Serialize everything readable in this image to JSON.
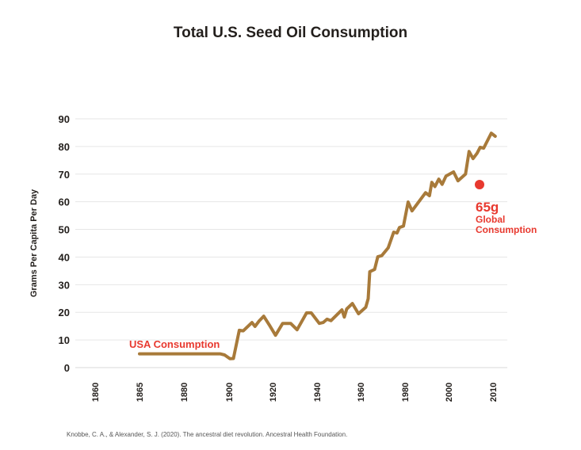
{
  "chart_data": {
    "type": "line",
    "title": "Total U.S. Seed Oil Consumption",
    "xlabel": "",
    "ylabel": "Grams Per Capita Per Day",
    "ylim": [
      0,
      90
    ],
    "yticks": [
      0,
      10,
      20,
      30,
      40,
      50,
      60,
      70,
      80,
      90
    ],
    "xticks": [
      1860,
      1865,
      1880,
      1900,
      1920,
      1940,
      1960,
      1980,
      2000,
      2010
    ],
    "grid": true,
    "colors": {
      "line": "#a87a3a",
      "annotation": "#e8392f",
      "grid": "#e6e6e6",
      "text": "#231f1c"
    },
    "series": [
      {
        "name": "USA Consumption",
        "x": [
          1865,
          1896,
          1898,
          1900.4,
          1902,
          1904.7,
          1906.5,
          1910.5,
          1911.9,
          1913.7,
          1915.9,
          1918.4,
          1921.3,
          1924.5,
          1928.1,
          1931,
          1935.3,
          1937.4,
          1941,
          1942.8,
          1944.6,
          1946.4,
          1951.4,
          1952.5,
          1953.6,
          1956.2,
          1959,
          1962.3,
          1963.4,
          1964.1,
          1966.3,
          1967.7,
          1969.5,
          1972.4,
          1974.9,
          1976.4,
          1977.5,
          1979.3,
          1981.4,
          1983.2,
          1989.4,
          1991.2,
          1992.3,
          1993.7,
          1995.5,
          1997,
          1998.8,
          2001.1,
          2002.1,
          2003.8,
          2004.6,
          2005.5,
          2006.4,
          2007.1,
          2007.9,
          2009.6,
          2010.5
        ],
        "y": [
          5,
          5,
          4.6,
          3.2,
          3.3,
          13.5,
          13.3,
          16.3,
          14.9,
          16.8,
          18.6,
          15.5,
          11.7,
          16,
          16,
          13.7,
          19.8,
          19.8,
          16,
          16.3,
          17.5,
          17,
          20.9,
          18.3,
          21.2,
          23.2,
          19.5,
          21.8,
          24.9,
          34.7,
          35.5,
          40.1,
          40.5,
          43.3,
          49,
          48.7,
          50.7,
          51.2,
          59.9,
          56.7,
          63.3,
          62.2,
          67,
          65.5,
          68.2,
          66.3,
          69.3,
          70.8,
          67.6,
          70,
          78.2,
          75.6,
          77.5,
          79.7,
          79.4,
          84.8,
          83.7
        ]
      }
    ],
    "annotations": {
      "usa_label": "USA Consumption",
      "global_point": {
        "year": 2007,
        "value": 65
      },
      "global_value": "65g",
      "global_line1": "Global",
      "global_line2": "Consumption"
    },
    "citation": "Knobbe, C. A., & Alexander, S. J. (2020). The ancestral diet revolution. Ancestral Health Foundation."
  }
}
